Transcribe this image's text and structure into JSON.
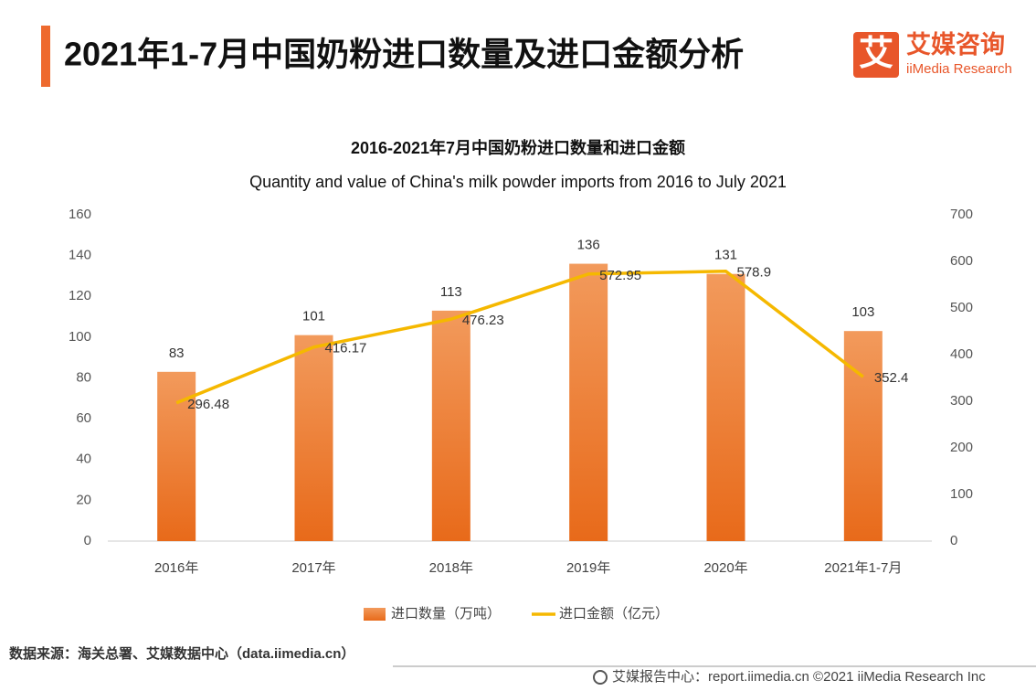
{
  "header": {
    "title": "2021年1-7月中国奶粉进口数量及进口金额分析",
    "logo_mark": "艾",
    "logo_name": "艾媒咨询",
    "logo_sub": "iiMedia Research"
  },
  "chart_data": {
    "type": "combo",
    "title": "2016-2021年7月中国奶粉进口数量和进口金额",
    "subtitle": "Quantity and value of China's milk powder imports from 2016 to July 2021",
    "categories": [
      "2016年",
      "2017年",
      "2018年",
      "2019年",
      "2020年",
      "2021年1-7月"
    ],
    "series": [
      {
        "name": "进口数量（万吨）",
        "type": "bar",
        "color": "#ee7d31",
        "values": [
          83,
          101,
          113,
          136,
          131,
          103
        ]
      },
      {
        "name": "进口金额（亿元）",
        "type": "line",
        "axis": "y2",
        "color": "#f5b800",
        "values": [
          296.48,
          416.17,
          476.23,
          572.95,
          578.9,
          352.4
        ]
      }
    ],
    "ylim": [
      0,
      160
    ],
    "yticks": [
      0,
      20,
      40,
      60,
      80,
      100,
      120,
      140,
      160
    ],
    "y2lim": [
      0,
      700
    ],
    "y2ticks": [
      0,
      100,
      200,
      300,
      400,
      500,
      600,
      700
    ],
    "legend": "bottom"
  },
  "footer": {
    "source": "数据来源：海关总署、艾媒数据中心（data.iimedia.cn）",
    "credit": "艾媒报告中心：report.iimedia.cn ©2021 iiMedia Research Inc"
  }
}
